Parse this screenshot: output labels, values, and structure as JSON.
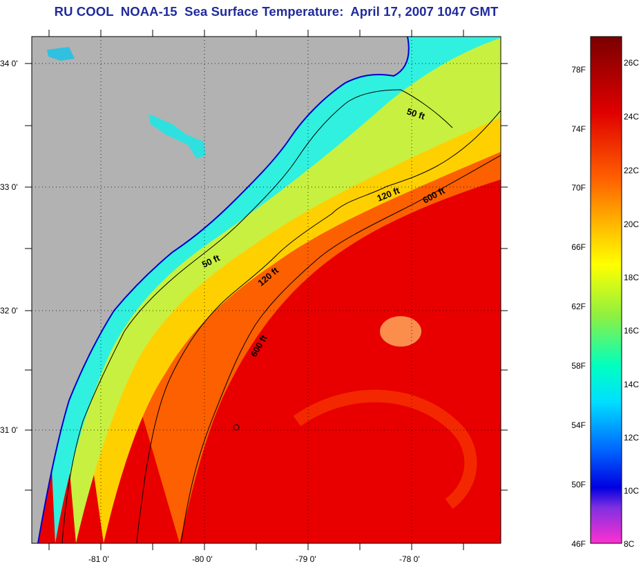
{
  "title": "RU COOL  NOAA-15  Sea Surface Temperature:  April 17, 2007 1047 GMT",
  "lat_labels": [
    "34 0'",
    "33 0'",
    "32 0'",
    "31 0'"
  ],
  "lon_labels": [
    "-81 0'",
    "-80 0'",
    "-79 0'",
    "-78 0'"
  ],
  "contours": {
    "c50a": "50 ft",
    "c50b": "50 ft",
    "c120a": "120 ft",
    "c120b": "120 ft",
    "c600a": "600 ft",
    "c600b": "600 ft"
  },
  "colorbar": {
    "fahrenheit": [
      "78F",
      "74F",
      "70F",
      "66F",
      "62F",
      "58F",
      "54F",
      "50F",
      "46F"
    ],
    "celsius": [
      "26C",
      "24C",
      "22C",
      "20C",
      "18C",
      "16C",
      "14C",
      "12C",
      "10C",
      "8C"
    ]
  },
  "colors": {
    "land": "#b2b2b2",
    "title": "#1f2b9c"
  }
}
